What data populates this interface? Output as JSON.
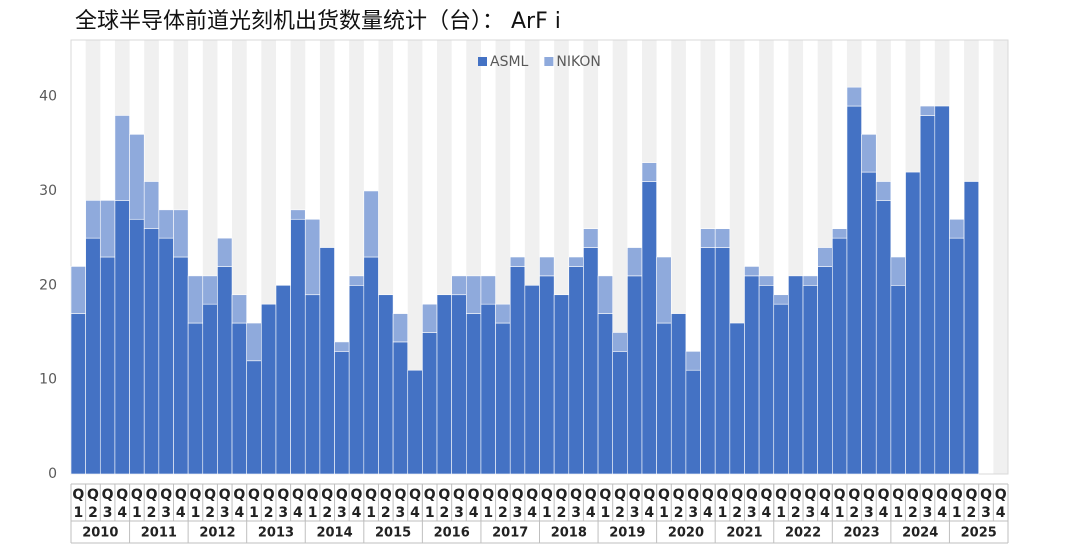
{
  "chart_data": {
    "type": "stacked_bar",
    "title": "全球半导体前道光刻机出货数量统计（台）： ArF i",
    "categories": [
      "Q1",
      "Q2",
      "Q3",
      "Q4",
      "Q1",
      "Q2",
      "Q3",
      "Q4",
      "Q1",
      "Q2",
      "Q3",
      "Q4",
      "Q1",
      "Q2",
      "Q3",
      "Q4",
      "Q1",
      "Q2",
      "Q3",
      "Q4",
      "Q1",
      "Q2",
      "Q3",
      "Q4",
      "Q1",
      "Q2",
      "Q3",
      "Q4",
      "Q1",
      "Q2",
      "Q3",
      "Q4",
      "Q1",
      "Q2",
      "Q3",
      "Q4",
      "Q1",
      "Q2",
      "Q3",
      "Q4",
      "Q1",
      "Q2",
      "Q3",
      "Q4",
      "Q1",
      "Q2",
      "Q3",
      "Q4",
      "Q1",
      "Q2",
      "Q3",
      "Q4",
      "Q1",
      "Q2",
      "Q3",
      "Q4",
      "Q1",
      "Q2",
      "Q3",
      "Q4",
      "Q1",
      "Q2",
      "Q3",
      "Q4"
    ],
    "years": [
      "2010",
      "2011",
      "2012",
      "2013",
      "2014",
      "2015",
      "2016",
      "2017",
      "2018",
      "2019",
      "2020",
      "2021",
      "2022",
      "2023",
      "2024",
      "2025"
    ],
    "series": [
      {
        "name": "ASML",
        "color": "#4472c4",
        "values": [
          17,
          25,
          23,
          29,
          27,
          26,
          25,
          23,
          16,
          18,
          22,
          16,
          12,
          18,
          20,
          27,
          19,
          24,
          13,
          20,
          23,
          19,
          14,
          11,
          15,
          19,
          19,
          17,
          18,
          16,
          22,
          20,
          21,
          19,
          22,
          24,
          17,
          13,
          21,
          31,
          16,
          17,
          11,
          24,
          24,
          16,
          21,
          20,
          18,
          21,
          20,
          22,
          25,
          39,
          32,
          29,
          20,
          32,
          38,
          39,
          25,
          31,
          null,
          null
        ]
      },
      {
        "name": "NIKON",
        "color": "#8faadc",
        "values": [
          5,
          4,
          6,
          9,
          9,
          5,
          3,
          5,
          5,
          3,
          3,
          3,
          4,
          0,
          0,
          1,
          8,
          0,
          1,
          1,
          7,
          0,
          3,
          0,
          3,
          0,
          2,
          4,
          3,
          2,
          1,
          0,
          2,
          0,
          1,
          2,
          4,
          2,
          3,
          2,
          7,
          0,
          2,
          2,
          2,
          0,
          1,
          1,
          1,
          0,
          1,
          2,
          1,
          2,
          4,
          2,
          3,
          0,
          1,
          0,
          2,
          0,
          null,
          null
        ]
      }
    ],
    "ylim": [
      0,
      46
    ],
    "yticks": [
      0,
      10,
      20,
      30,
      40
    ],
    "legend": "top"
  }
}
